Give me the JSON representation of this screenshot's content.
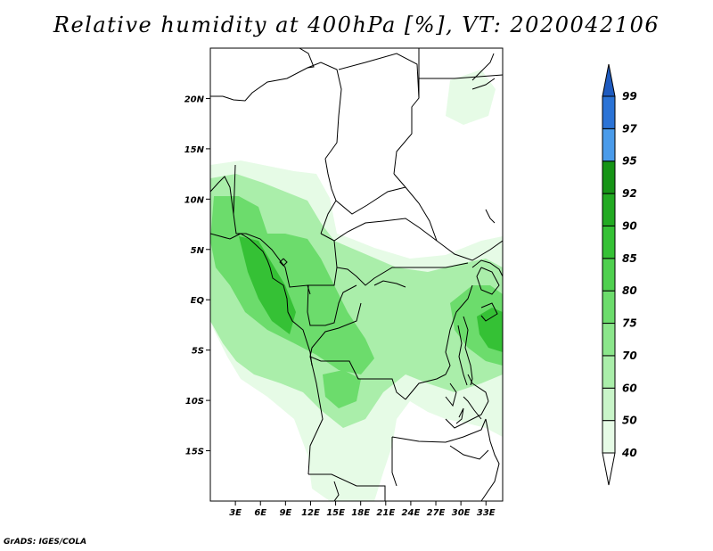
{
  "title": "Relative humidity at 400hPa [%], VT: 2020042106",
  "credit": "GrADS: IGES/COLA",
  "map": {
    "lon_range": [
      0,
      35
    ],
    "lat_range": [
      -20,
      25
    ],
    "lon_ticks": [
      "3E",
      "6E",
      "9E",
      "12E",
      "15E",
      "18E",
      "21E",
      "24E",
      "27E",
      "30E",
      "33E"
    ],
    "lat_ticks": [
      "20N",
      "15N",
      "10N",
      "5N",
      "EQ",
      "5S",
      "10S",
      "15S"
    ]
  },
  "colorbar": {
    "levels": [
      "40",
      "50",
      "60",
      "70",
      "75",
      "80",
      "85",
      "90",
      "92",
      "95",
      "97",
      "99"
    ],
    "colors": [
      "#e6fbe6",
      "#c9f5c9",
      "#aaeeaa",
      "#8be68b",
      "#6cdc6c",
      "#4fd04f",
      "#35c135",
      "#22aa22",
      "#169416",
      "#4a9bea",
      "#2b73d6",
      "#1f5bbf"
    ]
  }
}
